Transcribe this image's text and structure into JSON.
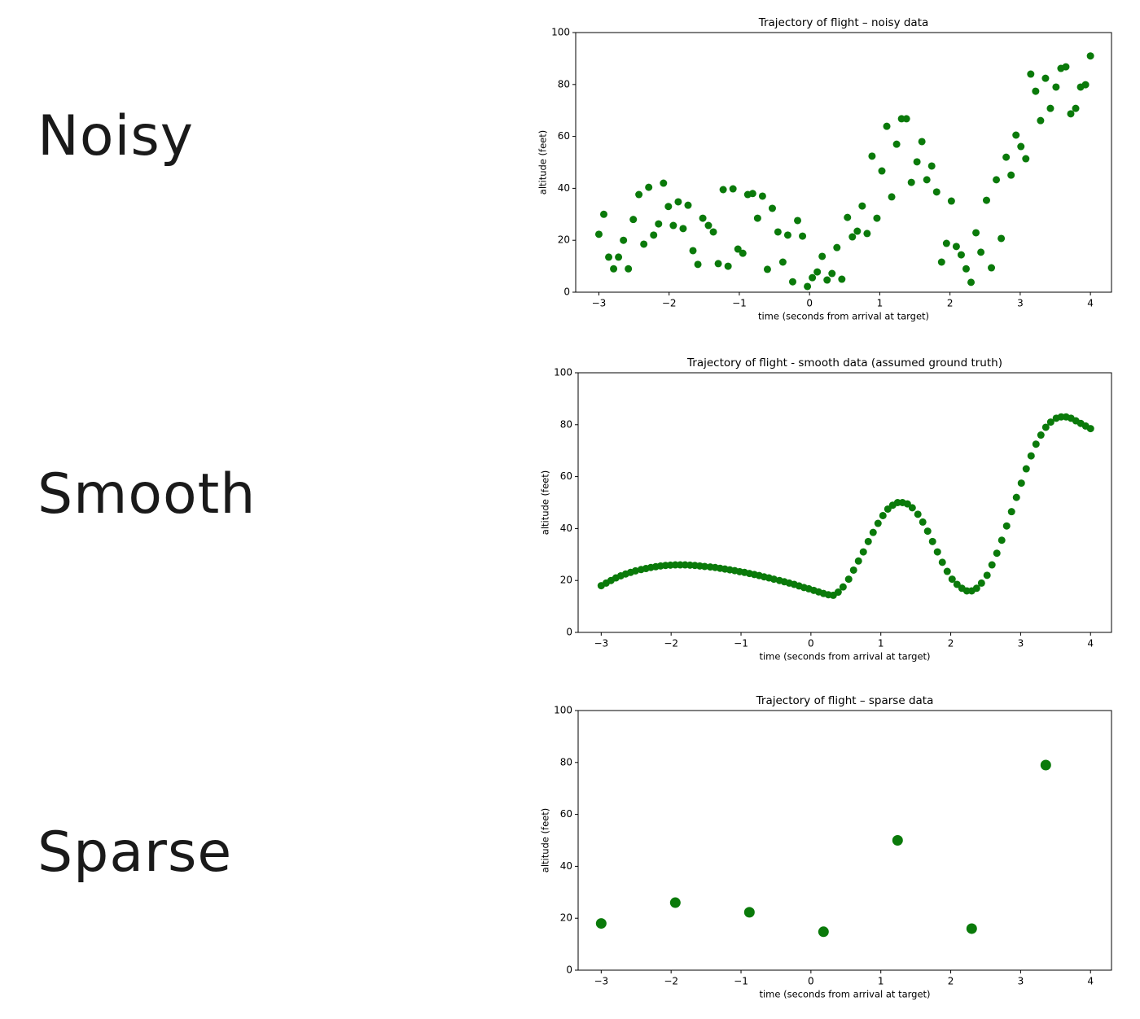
{
  "labels": [
    "Noisy",
    "Smooth",
    "Sparse"
  ],
  "chart_data": [
    {
      "type": "scatter",
      "title": "Trajectory of flight  –  noisy data",
      "xlabel": "time (seconds from arrival at target)",
      "ylabel": "altitude (feet)",
      "color": "#0a7a0a",
      "xlim": [
        -3.33,
        4.3
      ],
      "ylim": [
        0,
        100
      ],
      "xticks": [
        {
          "value": -3,
          "label": "−3"
        },
        {
          "value": -2,
          "label": "−2"
        },
        {
          "value": -1,
          "label": "−1"
        },
        0,
        1,
        2,
        3,
        4
      ],
      "yticks": [
        0,
        20,
        40,
        60,
        80,
        100
      ],
      "x": [
        -3.0,
        -2.93,
        -2.86,
        -2.79,
        -2.72,
        -2.65,
        -2.58,
        -2.51,
        -2.43,
        -2.36,
        -2.29,
        -2.22,
        -2.15,
        -2.08,
        -2.01,
        -1.94,
        -1.87,
        -1.8,
        -1.73,
        -1.66,
        -1.59,
        -1.52,
        -1.44,
        -1.37,
        -1.3,
        -1.23,
        -1.16,
        -1.09,
        -1.02,
        -0.95,
        -0.88,
        -0.81,
        -0.74,
        -0.67,
        -0.6,
        -0.53,
        -0.45,
        -0.38,
        -0.31,
        -0.24,
        -0.17,
        -0.1,
        -0.03,
        0.04,
        0.11,
        0.18,
        0.25,
        0.32,
        0.39,
        0.46,
        0.54,
        0.61,
        0.68,
        0.75,
        0.82,
        0.89,
        0.96,
        1.03,
        1.1,
        1.17,
        1.24,
        1.31,
        1.38,
        1.45,
        1.53,
        1.6,
        1.67,
        1.74,
        1.81,
        1.88,
        1.95,
        2.02,
        2.09,
        2.16,
        2.23,
        2.3,
        2.37,
        2.44,
        2.52,
        2.59,
        2.66,
        2.73,
        2.8,
        2.87,
        2.94,
        3.01,
        3.08,
        3.15,
        3.22,
        3.29,
        3.36,
        3.43,
        3.51,
        3.58,
        3.65,
        3.72,
        3.79,
        3.86,
        3.93,
        4.0
      ],
      "values": [
        22.3,
        30,
        13.5,
        9,
        13.5,
        20,
        9,
        28,
        37.6,
        18.5,
        40.4,
        22,
        26.3,
        42,
        33,
        25.7,
        34.8,
        24.5,
        33.5,
        16,
        10.7,
        28.5,
        25.7,
        23.2,
        11,
        39.5,
        10,
        39.8,
        16.6,
        15,
        37.6,
        38,
        28.5,
        37,
        8.8,
        32.3,
        23.2,
        11.6,
        22,
        4,
        27.6,
        21.6,
        2.2,
        5.6,
        7.8,
        13.8,
        4.7,
        7.2,
        17.2,
        5,
        28.8,
        21.3,
        23.5,
        33.2,
        22.6,
        52.4,
        28.5,
        46.7,
        63.9,
        36.7,
        57,
        66.8,
        66.8,
        42.3,
        50.2,
        58,
        43.3,
        48.6,
        38.6,
        11.6,
        18.8,
        35.1,
        17.6,
        14.4,
        9,
        3.8,
        22.9,
        15.4,
        35.4,
        9.4,
        43.3,
        20.7,
        52,
        45.1,
        60.5,
        56.1,
        51.4,
        84,
        77.4,
        66.1,
        82.4,
        70.8,
        79,
        86.2,
        86.8,
        68.7,
        70.8,
        79,
        79.9,
        91
      ]
    },
    {
      "type": "scatter",
      "title": "Trajectory of flight - smooth data (assumed ground truth)",
      "xlabel": "time (seconds from arrival at target)",
      "ylabel": "altitude (feet)",
      "color": "#0a7a0a",
      "xlim": [
        -3.33,
        4.3
      ],
      "ylim": [
        0,
        100
      ],
      "xticks": [
        {
          "value": -3,
          "label": "−3"
        },
        {
          "value": -2,
          "label": "−2"
        },
        {
          "value": -1,
          "label": "−1"
        },
        0,
        1,
        2,
        3,
        4
      ],
      "yticks": [
        0,
        20,
        40,
        60,
        80,
        100
      ],
      "x": [
        -3.0,
        -2.93,
        -2.86,
        -2.79,
        -2.72,
        -2.65,
        -2.58,
        -2.51,
        -2.43,
        -2.36,
        -2.29,
        -2.22,
        -2.15,
        -2.08,
        -2.01,
        -1.94,
        -1.87,
        -1.8,
        -1.73,
        -1.66,
        -1.59,
        -1.52,
        -1.44,
        -1.37,
        -1.3,
        -1.23,
        -1.16,
        -1.09,
        -1.02,
        -0.95,
        -0.88,
        -0.81,
        -0.74,
        -0.67,
        -0.6,
        -0.53,
        -0.45,
        -0.38,
        -0.31,
        -0.24,
        -0.17,
        -0.1,
        -0.03,
        0.04,
        0.11,
        0.18,
        0.25,
        0.32,
        0.39,
        0.46,
        0.54,
        0.61,
        0.68,
        0.75,
        0.82,
        0.89,
        0.96,
        1.03,
        1.1,
        1.17,
        1.24,
        1.31,
        1.38,
        1.45,
        1.53,
        1.6,
        1.67,
        1.74,
        1.81,
        1.88,
        1.95,
        2.02,
        2.09,
        2.16,
        2.23,
        2.3,
        2.37,
        2.44,
        2.52,
        2.59,
        2.66,
        2.73,
        2.8,
        2.87,
        2.94,
        3.01,
        3.08,
        3.15,
        3.22,
        3.29,
        3.36,
        3.43,
        3.51,
        3.58,
        3.65,
        3.72,
        3.79,
        3.86,
        3.93,
        4.0
      ],
      "values": [
        18,
        19,
        20,
        21,
        21.8,
        22.5,
        23.1,
        23.7,
        24.2,
        24.6,
        25,
        25.3,
        25.6,
        25.8,
        25.9,
        26,
        26,
        26,
        25.9,
        25.8,
        25.6,
        25.4,
        25.2,
        25,
        24.7,
        24.4,
        24.1,
        23.8,
        23.4,
        23.1,
        22.7,
        22.3,
        21.9,
        21.4,
        21,
        20.5,
        20,
        19.5,
        19,
        18.5,
        17.9,
        17.3,
        16.8,
        16.2,
        15.6,
        15,
        14.5,
        14.3,
        15.5,
        17.5,
        20.5,
        24,
        27.5,
        31,
        35,
        38.5,
        42,
        45,
        47.5,
        49,
        50,
        50,
        49.5,
        48,
        45.5,
        42.5,
        39,
        35,
        31,
        27,
        23.5,
        20.5,
        18.5,
        17,
        16,
        16,
        17,
        19,
        22,
        26,
        30.5,
        35.5,
        41,
        46.5,
        52,
        57.5,
        63,
        68,
        72.5,
        76,
        79,
        81,
        82.5,
        83,
        83,
        82.5,
        81.5,
        80.5,
        79.5,
        78.5
      ]
    },
    {
      "type": "scatter",
      "title": "Trajectory of flight  –  sparse data",
      "xlabel": "time (seconds from arrival at target)",
      "ylabel": "altitude (feet)",
      "color": "#0a7a0a",
      "xlim": [
        -3.33,
        4.3
      ],
      "ylim": [
        0,
        100
      ],
      "xticks": [
        {
          "value": -3,
          "label": "−3"
        },
        {
          "value": -2,
          "label": "−2"
        },
        {
          "value": -1,
          "label": "−1"
        },
        0,
        1,
        2,
        3,
        4
      ],
      "yticks": [
        0,
        20,
        40,
        60,
        80,
        100
      ],
      "x": [
        -3.0,
        -1.94,
        -0.88,
        0.18,
        1.24,
        2.3,
        3.36
      ],
      "values": [
        18,
        26,
        22.3,
        14.8,
        50,
        16,
        79
      ]
    }
  ]
}
